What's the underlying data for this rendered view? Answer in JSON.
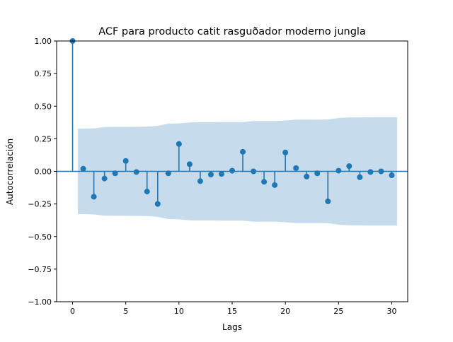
{
  "chart_data": {
    "type": "stem",
    "title": "ACF para producto catit rasguðador  moderno jungla",
    "xlabel": "Lags",
    "ylabel": "Autocorrelación",
    "xlim": [
      -1.5,
      31.5
    ],
    "ylim": [
      -1.0,
      1.0
    ],
    "xticks": [
      0,
      5,
      10,
      15,
      20,
      25,
      30
    ],
    "xtick_labels": [
      "0",
      "5",
      "10",
      "15",
      "20",
      "25",
      "30"
    ],
    "yticks": [
      -1.0,
      -0.75,
      -0.5,
      -0.25,
      0.0,
      0.25,
      0.5,
      0.75,
      1.0
    ],
    "ytick_labels": [
      "−1.00",
      "−0.75",
      "−0.50",
      "−0.25",
      "0.00",
      "0.25",
      "0.50",
      "0.75",
      "1.00"
    ],
    "grid": false,
    "colors": {
      "series": "#1f77b4",
      "band": "#c6dcec"
    },
    "series": [
      {
        "lags": [
          0,
          1,
          2,
          3,
          4,
          5,
          6,
          7,
          8,
          9,
          10,
          11,
          12,
          13,
          14,
          15,
          16,
          17,
          18,
          19,
          20,
          21,
          22,
          23,
          24,
          25,
          26,
          27,
          28,
          29,
          30
        ],
        "values": [
          1.0,
          0.02,
          -0.195,
          -0.055,
          -0.015,
          0.08,
          -0.005,
          -0.155,
          -0.25,
          -0.015,
          0.21,
          0.055,
          -0.075,
          -0.025,
          -0.02,
          0.005,
          0.15,
          0.0,
          -0.08,
          -0.105,
          0.145,
          0.025,
          -0.04,
          -0.015,
          -0.23,
          0.005,
          0.04,
          -0.045,
          -0.005,
          0.0,
          -0.03
        ]
      }
    ],
    "confidence_band": {
      "lags": [
        0.5,
        1,
        2,
        3,
        4,
        5,
        6,
        7,
        8,
        9,
        10,
        11,
        12,
        13,
        14,
        15,
        16,
        17,
        18,
        19,
        20,
        21,
        22,
        23,
        24,
        25,
        26,
        27,
        28,
        29,
        30,
        30.5
      ],
      "upper": [
        0.328,
        0.328,
        0.33,
        0.34,
        0.341,
        0.341,
        0.342,
        0.343,
        0.349,
        0.366,
        0.368,
        0.376,
        0.377,
        0.377,
        0.378,
        0.378,
        0.378,
        0.386,
        0.386,
        0.386,
        0.39,
        0.397,
        0.397,
        0.397,
        0.398,
        0.409,
        0.414,
        0.414,
        0.415,
        0.415,
        0.415,
        0.415
      ]
    }
  }
}
